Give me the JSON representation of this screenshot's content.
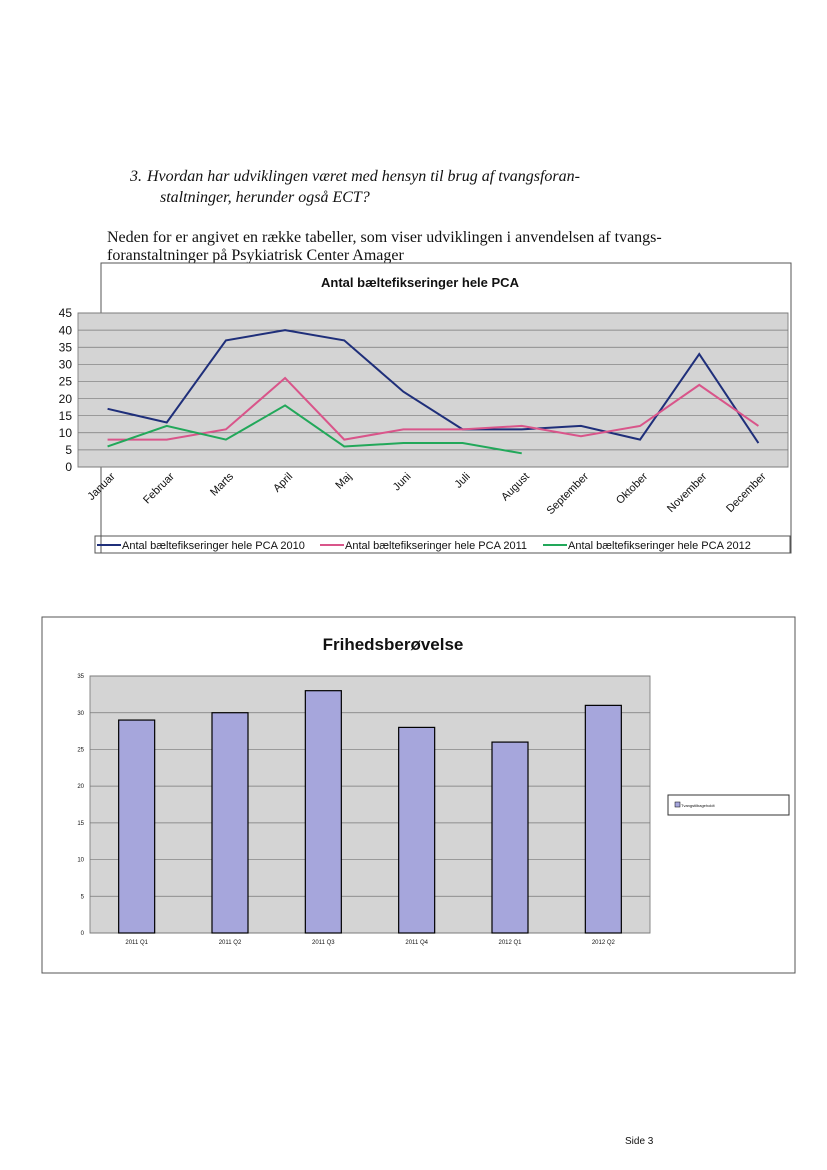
{
  "heading": {
    "number": "3.",
    "lines": [
      "Hvordan har udviklingen været med hensyn til brug af tvangsforan-",
      "staltninger, herunder også ECT?"
    ]
  },
  "paragraph": {
    "lines": [
      "Neden for er angivet en række tabeller, som viser udviklingen i anvendelsen af tvangs-",
      "foranstaltninger på Psykiatrisk Center Amager"
    ]
  },
  "chart_data": [
    {
      "type": "line",
      "title": "Antal bæltefikseringer hele PCA",
      "categories": [
        "Januar",
        "Februar",
        "Marts",
        "April",
        "Maj",
        "Juni",
        "Juli",
        "August",
        "September",
        "Oktober",
        "November",
        "December"
      ],
      "series": [
        {
          "name": "Antal bæltefikseringer hele PCA 2010",
          "color": "#1f2f7a",
          "values": [
            17,
            13,
            37,
            40,
            37,
            22,
            11,
            11,
            12,
            8,
            33,
            7
          ]
        },
        {
          "name": "Antal bæltefikseringer hele PCA 2011",
          "color": "#d9558a",
          "values": [
            8,
            8,
            11,
            26,
            8,
            11,
            11,
            12,
            9,
            12,
            24,
            12
          ]
        },
        {
          "name": "Antal bæltefikseringer hele PCA 2012",
          "color": "#22a85a",
          "values": [
            6,
            12,
            8,
            18,
            6,
            7,
            7,
            4,
            null,
            null,
            null,
            null
          ]
        }
      ],
      "ylim": [
        0,
        45
      ],
      "yticks": [
        0,
        5,
        10,
        15,
        20,
        25,
        30,
        35,
        40,
        45
      ],
      "grid": true,
      "legend": "bottom"
    },
    {
      "type": "bar",
      "title": "Frihedsberøvelse",
      "categories": [
        "2011 Q1",
        "2011 Q2",
        "2011 Q3",
        "2011 Q4",
        "2012 Q1",
        "2012 Q2"
      ],
      "series": [
        {
          "name": "Tvangstilbageholdt",
          "color": "#a6a6dc",
          "values": [
            29,
            30,
            33,
            28,
            26,
            31
          ]
        }
      ],
      "ylim": [
        0,
        35
      ],
      "yticks": [
        0,
        5,
        10,
        15,
        20,
        25,
        30,
        35
      ],
      "grid": true,
      "legend": "right"
    }
  ],
  "footer": "Side 3"
}
